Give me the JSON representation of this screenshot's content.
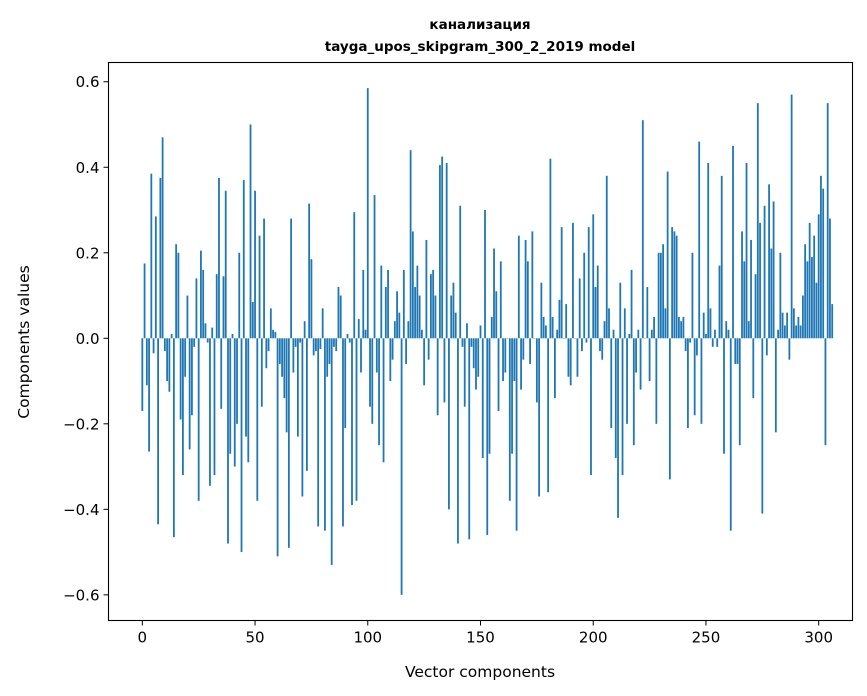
{
  "chart_data": {
    "type": "bar",
    "title": "канализация",
    "subtitle": "tayga_upos_skipgram_300_2_2019 model",
    "xlabel": "Vector components",
    "ylabel": "Components values",
    "xlim": [
      -15,
      315
    ],
    "ylim": [
      -0.66,
      0.645
    ],
    "xticks": [
      0,
      50,
      100,
      150,
      200,
      250,
      300
    ],
    "xtick_labels": [
      "0",
      "50",
      "100",
      "150",
      "200",
      "250",
      "300"
    ],
    "yticks": [
      -0.6,
      -0.4,
      -0.2,
      0.0,
      0.2,
      0.4,
      0.6
    ],
    "ytick_labels": [
      "−0.6",
      "−0.4",
      "−0.2",
      "0.0",
      "0.2",
      "0.4",
      "0.6"
    ],
    "bar_color": "#1f77b4",
    "values": [
      -0.17,
      0.175,
      -0.11,
      -0.265,
      0.385,
      -0.035,
      0.285,
      -0.435,
      0.375,
      0.47,
      -0.03,
      -0.1,
      -0.125,
      0.01,
      -0.465,
      0.22,
      0.2,
      -0.19,
      -0.32,
      -0.09,
      0.1,
      -0.26,
      -0.18,
      -0.02,
      0.14,
      -0.38,
      0.205,
      0.16,
      0.035,
      -0.01,
      -0.345,
      0.025,
      -0.32,
      0.15,
      0.375,
      -0.165,
      0.145,
      0.345,
      -0.48,
      -0.27,
      0.01,
      -0.3,
      -0.2,
      0.2,
      -0.5,
      0.37,
      -0.23,
      -0.29,
      0.5,
      0.085,
      0.345,
      -0.38,
      0.24,
      -0.16,
      0.28,
      -0.07,
      -0.03,
      0.07,
      0.02,
      0.015,
      -0.51,
      -0.06,
      -0.09,
      -0.14,
      -0.22,
      -0.49,
      0.28,
      -0.08,
      -0.02,
      -0.23,
      -0.01,
      -0.37,
      0.04,
      -0.31,
      0.315,
      0.185,
      -0.04,
      -0.03,
      -0.44,
      -0.025,
      0.07,
      -0.45,
      -0.09,
      -0.06,
      -0.53,
      -0.02,
      -0.03,
      0.12,
      0.1,
      -0.44,
      -0.21,
      0.01,
      -0.01,
      -0.39,
      0.295,
      -0.38,
      0.045,
      -0.08,
      0.16,
      0.02,
      0.585,
      -0.16,
      -0.2,
      0.335,
      -0.08,
      -0.25,
      0.17,
      -0.29,
      0.12,
      0.16,
      -0.1,
      -0.05,
      0.04,
      0.11,
      0.06,
      -0.6,
      0.16,
      -0.06,
      0.04,
      0.44,
      0.25,
      0.12,
      0.17,
      0.1,
      0.02,
      -0.11,
      0.23,
      -0.05,
      0.15,
      0.16,
      0.1,
      -0.18,
      0.405,
      0.425,
      -0.15,
      0.41,
      -0.4,
      0.1,
      0.13,
      0.06,
      -0.48,
      0.31,
      -0.02,
      -0.16,
      0.035,
      -0.47,
      -0.02,
      -0.07,
      -0.12,
      -0.09,
      0.03,
      -0.28,
      0.3,
      -0.46,
      -0.27,
      0.05,
      0.21,
      0.11,
      -0.17,
      0.18,
      -0.1,
      -0.08,
      0.0,
      -0.38,
      -0.27,
      -0.1,
      -0.45,
      0.24,
      -0.12,
      -0.05,
      0.23,
      0.18,
      -0.06,
      0.25,
      0.0,
      -0.15,
      -0.37,
      0.13,
      0.05,
      0.03,
      -0.36,
      0.42,
      0.05,
      -0.14,
      0.02,
      0.09,
      0.26,
      0.0,
      0.08,
      -0.09,
      -0.11,
      0.27,
      0.0,
      -0.09,
      0.14,
      -0.03,
      0.2,
      -0.01,
      0.26,
      -0.32,
      0.29,
      0.12,
      0.17,
      -0.03,
      -0.05,
      0.04,
      0.38,
      0.07,
      -0.21,
      0.02,
      -0.28,
      -0.42,
      0.13,
      -0.32,
      0.07,
      -0.2,
      0.01,
      0.16,
      -0.25,
      -0.08,
      0.02,
      -0.12,
      0.51,
      0.0,
      0.12,
      -0.1,
      0.02,
      0.05,
      -0.2,
      0.2,
      0.2,
      0.22,
      0.07,
      0.39,
      -0.33,
      0.26,
      0.25,
      0.24,
      0.05,
      0.04,
      0.05,
      -0.03,
      -0.21,
      -0.01,
      0.2,
      -0.18,
      -0.04,
      0.46,
      -0.2,
      0.06,
      0.01,
      0.41,
      0.07,
      -0.02,
      0.02,
      -0.02,
      0.17,
      0.38,
      -0.27,
      0.04,
      0.02,
      -0.45,
      0.45,
      -0.06,
      -0.06,
      -0.25,
      0.25,
      0.18,
      0.41,
      0.04,
      0.23,
      -0.14,
      0.15,
      0.55,
      0.27,
      -0.41,
      0.31,
      -0.04,
      0.36,
      0.21,
      0.32,
      -0.22,
      0.02,
      0.2,
      0.06,
      0.03,
      0.06,
      -0.05,
      0.57,
      0.07,
      0.03,
      0.05,
      0.03,
      0.1,
      0.22,
      0.18,
      0.27,
      0.19,
      0.24,
      0.13,
      0.29,
      0.38,
      0.35,
      -0.25,
      0.55,
      0.28,
      0.08
    ]
  }
}
